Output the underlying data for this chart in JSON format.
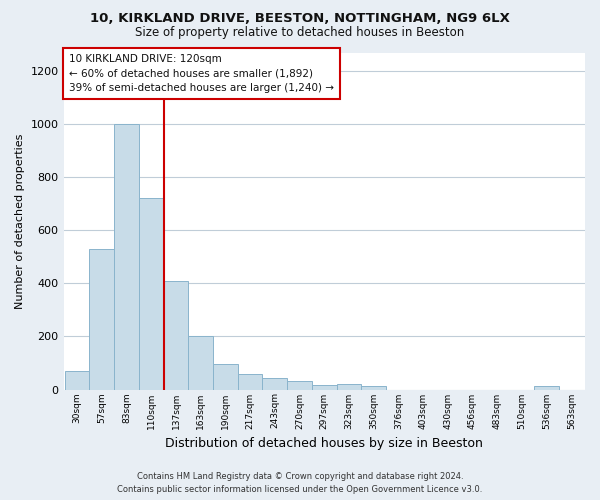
{
  "title_line1": "10, KIRKLAND DRIVE, BEESTON, NOTTINGHAM, NG9 6LX",
  "title_line2": "Size of property relative to detached houses in Beeston",
  "xlabel": "Distribution of detached houses by size in Beeston",
  "ylabel": "Number of detached properties",
  "bar_color": "#c8dce8",
  "bar_edge_color": "#8ab4cc",
  "vline_color": "#cc0000",
  "bins": [
    "30sqm",
    "57sqm",
    "83sqm",
    "110sqm",
    "137sqm",
    "163sqm",
    "190sqm",
    "217sqm",
    "243sqm",
    "270sqm",
    "297sqm",
    "323sqm",
    "350sqm",
    "376sqm",
    "403sqm",
    "430sqm",
    "456sqm",
    "483sqm",
    "510sqm",
    "536sqm",
    "563sqm"
  ],
  "values": [
    70,
    530,
    1000,
    720,
    410,
    200,
    95,
    60,
    45,
    33,
    18,
    20,
    15,
    0,
    0,
    0,
    0,
    0,
    0,
    15,
    0
  ],
  "ylim": [
    0,
    1270
  ],
  "yticks": [
    0,
    200,
    400,
    600,
    800,
    1000,
    1200
  ],
  "annotation_title": "10 KIRKLAND DRIVE: 120sqm",
  "annotation_line2": "← 60% of detached houses are smaller (1,892)",
  "annotation_line3": "39% of semi-detached houses are larger (1,240) →",
  "footer_line1": "Contains HM Land Registry data © Crown copyright and database right 2024.",
  "footer_line2": "Contains public sector information licensed under the Open Government Licence v3.0.",
  "bg_color": "#e8eef4",
  "plot_bg_color": "#ffffff",
  "grid_color": "#c0cdd8"
}
